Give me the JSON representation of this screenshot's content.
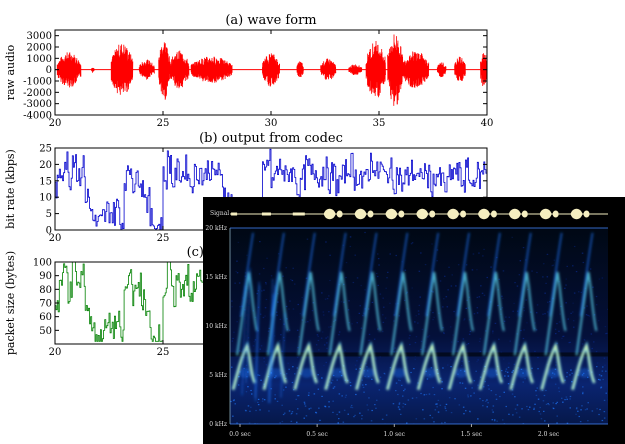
{
  "chart_data": [
    {
      "type": "line",
      "title": "(a) wave form",
      "ylabel": "raw audio",
      "xlim": [
        20,
        40
      ],
      "ylim": [
        -4000,
        3500
      ],
      "xticks": [
        "20",
        "25",
        "30",
        "35",
        "40"
      ],
      "yticks": [
        "3000",
        "2000",
        "1000",
        "0",
        "-1000",
        "-2000",
        "-3000",
        "-4000"
      ],
      "color": "#ff0000",
      "bursts": [
        {
          "start": 20.1,
          "end": 21.2,
          "amp": 1600
        },
        {
          "start": 21.7,
          "end": 21.8,
          "amp": 300
        },
        {
          "start": 22.6,
          "end": 23.6,
          "amp": 2400
        },
        {
          "start": 23.9,
          "end": 24.6,
          "amp": 900
        },
        {
          "start": 24.8,
          "end": 25.3,
          "amp": 2800
        },
        {
          "start": 25.3,
          "end": 26.2,
          "amp": 1700
        },
        {
          "start": 26.3,
          "end": 28.2,
          "amp": 1200
        },
        {
          "start": 29.6,
          "end": 30.4,
          "amp": 1500
        },
        {
          "start": 31.2,
          "end": 31.5,
          "amp": 800
        },
        {
          "start": 32.3,
          "end": 33.0,
          "amp": 1000
        },
        {
          "start": 33.6,
          "end": 34.2,
          "amp": 500
        },
        {
          "start": 34.4,
          "end": 35.3,
          "amp": 2600
        },
        {
          "start": 35.4,
          "end": 36.1,
          "amp": 3300
        },
        {
          "start": 36.1,
          "end": 37.3,
          "amp": 1700
        },
        {
          "start": 37.7,
          "end": 38.1,
          "amp": 700
        },
        {
          "start": 38.5,
          "end": 39.0,
          "amp": 1200
        },
        {
          "start": 39.7,
          "end": 40.0,
          "amp": 1800
        }
      ]
    },
    {
      "type": "line",
      "title": "(b) output from codec",
      "ylabel": "bit rate (kbps)",
      "xlim": [
        20,
        40
      ],
      "ylim": [
        0,
        25
      ],
      "xticks": [
        "20",
        "25"
      ],
      "yticks": [
        "25",
        "20",
        "15",
        "10",
        "5",
        "0"
      ],
      "color": "#0000cc",
      "x": [
        20.0,
        20.2,
        20.4,
        20.6,
        20.8,
        21.0,
        21.2,
        21.4,
        21.6,
        21.8,
        22.0,
        22.2,
        22.4,
        22.6,
        22.8,
        23.0,
        23.2,
        23.4,
        23.6,
        23.8,
        24.0,
        24.2,
        24.4,
        24.6,
        24.8,
        25.0,
        25.2,
        25.4,
        25.6,
        25.8,
        26.0,
        26.2,
        26.4,
        26.6,
        26.8,
        27.0,
        27.2,
        27.4,
        27.6,
        27.8,
        28.0,
        28.2,
        28.4,
        28.6,
        28.8,
        29.0,
        29.2,
        29.4,
        29.6,
        29.8,
        30.0,
        30.2,
        30.4,
        30.6,
        30.8,
        31.0,
        31.2,
        31.4,
        31.6,
        31.8,
        32.0,
        32.2,
        32.4,
        32.6,
        32.8,
        33.0,
        33.2,
        33.4,
        33.6,
        33.8,
        34.0,
        34.2,
        34.4,
        34.6,
        34.8,
        35.0,
        35.2,
        35.4,
        35.6,
        35.8,
        36.0,
        36.2,
        36.4,
        36.6,
        36.8,
        37.0,
        37.2,
        37.4,
        37.6,
        37.8,
        38.0,
        38.2,
        38.4,
        38.6,
        38.8,
        39.0,
        39.2,
        39.4,
        39.6,
        39.8,
        40.0
      ],
      "values": [
        13,
        18,
        21,
        16,
        23,
        17,
        19,
        10,
        6,
        2,
        2,
        4,
        6,
        5,
        7,
        2,
        16,
        19,
        14,
        17,
        13,
        9,
        3,
        1,
        2,
        16,
        21,
        15,
        18,
        17,
        19,
        14,
        17,
        18,
        16,
        19,
        17,
        18,
        15,
        12,
        9,
        6,
        4,
        3,
        2,
        1,
        2,
        3,
        17,
        21,
        15,
        18,
        19,
        16,
        18,
        17,
        12,
        16,
        19,
        17,
        18,
        16,
        19,
        15,
        17,
        14,
        16,
        18,
        20,
        16,
        17,
        14,
        18,
        21,
        17,
        19,
        16,
        18,
        15,
        17,
        14,
        16,
        18,
        17,
        15,
        18,
        16,
        14,
        17,
        15,
        13,
        16,
        18,
        17,
        15,
        18,
        14,
        17,
        16,
        19,
        15
      ]
    },
    {
      "type": "line",
      "title": "(c)",
      "ylabel": "packet size (bytes)",
      "xlim": [
        20,
        40
      ],
      "ylim": [
        40,
        100
      ],
      "xticks": [
        "20",
        "25",
        "3"
      ],
      "yticks": [
        "100",
        "90",
        "80",
        "70",
        "60",
        "50"
      ],
      "color": "#008000",
      "x": [
        20.0,
        20.2,
        20.4,
        20.6,
        20.8,
        21.0,
        21.2,
        21.4,
        21.6,
        21.8,
        22.0,
        22.2,
        22.4,
        22.6,
        22.8,
        23.0,
        23.2,
        23.4,
        23.6,
        23.8,
        24.0,
        24.2,
        24.4,
        24.6,
        24.8,
        25.0,
        25.2,
        25.4,
        25.6,
        25.8,
        26.0,
        26.2,
        26.4,
        26.6,
        26.8,
        27.0,
        27.2,
        27.4,
        27.6,
        27.8,
        28.0,
        28.2,
        28.4,
        28.6,
        28.8,
        29.0,
        29.2,
        29.4,
        29.6,
        29.8,
        30.0
      ],
      "values": [
        70,
        85,
        95,
        78,
        98,
        82,
        90,
        68,
        55,
        48,
        44,
        50,
        54,
        52,
        56,
        44,
        80,
        92,
        75,
        84,
        72,
        60,
        48,
        43,
        46,
        78,
        96,
        74,
        86,
        82,
        90,
        72,
        84,
        88,
        80,
        92,
        84,
        88,
        76,
        66,
        58,
        52,
        48,
        46,
        44,
        42,
        44,
        48,
        84,
        98,
        76
      ]
    },
    {
      "type": "heatmap",
      "title": "",
      "track_label": "Signal",
      "colormap": [
        "#000000",
        "#0a2a8a",
        "#1e78ff",
        "#64e6ff",
        "#ffff80"
      ],
      "yticks": [
        "20 kHz",
        "15 kHz",
        "10 kHz",
        "5 kHz",
        "0 kHz"
      ],
      "xticks": [
        "0.0 sec",
        "0.5 sec",
        "1.0 sec",
        "1.5 sec",
        "2.0 sec"
      ],
      "xlim": [
        0.0,
        2.45
      ],
      "ylim": [
        0,
        20
      ],
      "call_times": [
        0.02,
        0.22,
        0.42,
        0.62,
        0.82,
        1.02,
        1.22,
        1.42,
        1.62,
        1.82,
        2.02,
        2.22
      ]
    }
  ]
}
